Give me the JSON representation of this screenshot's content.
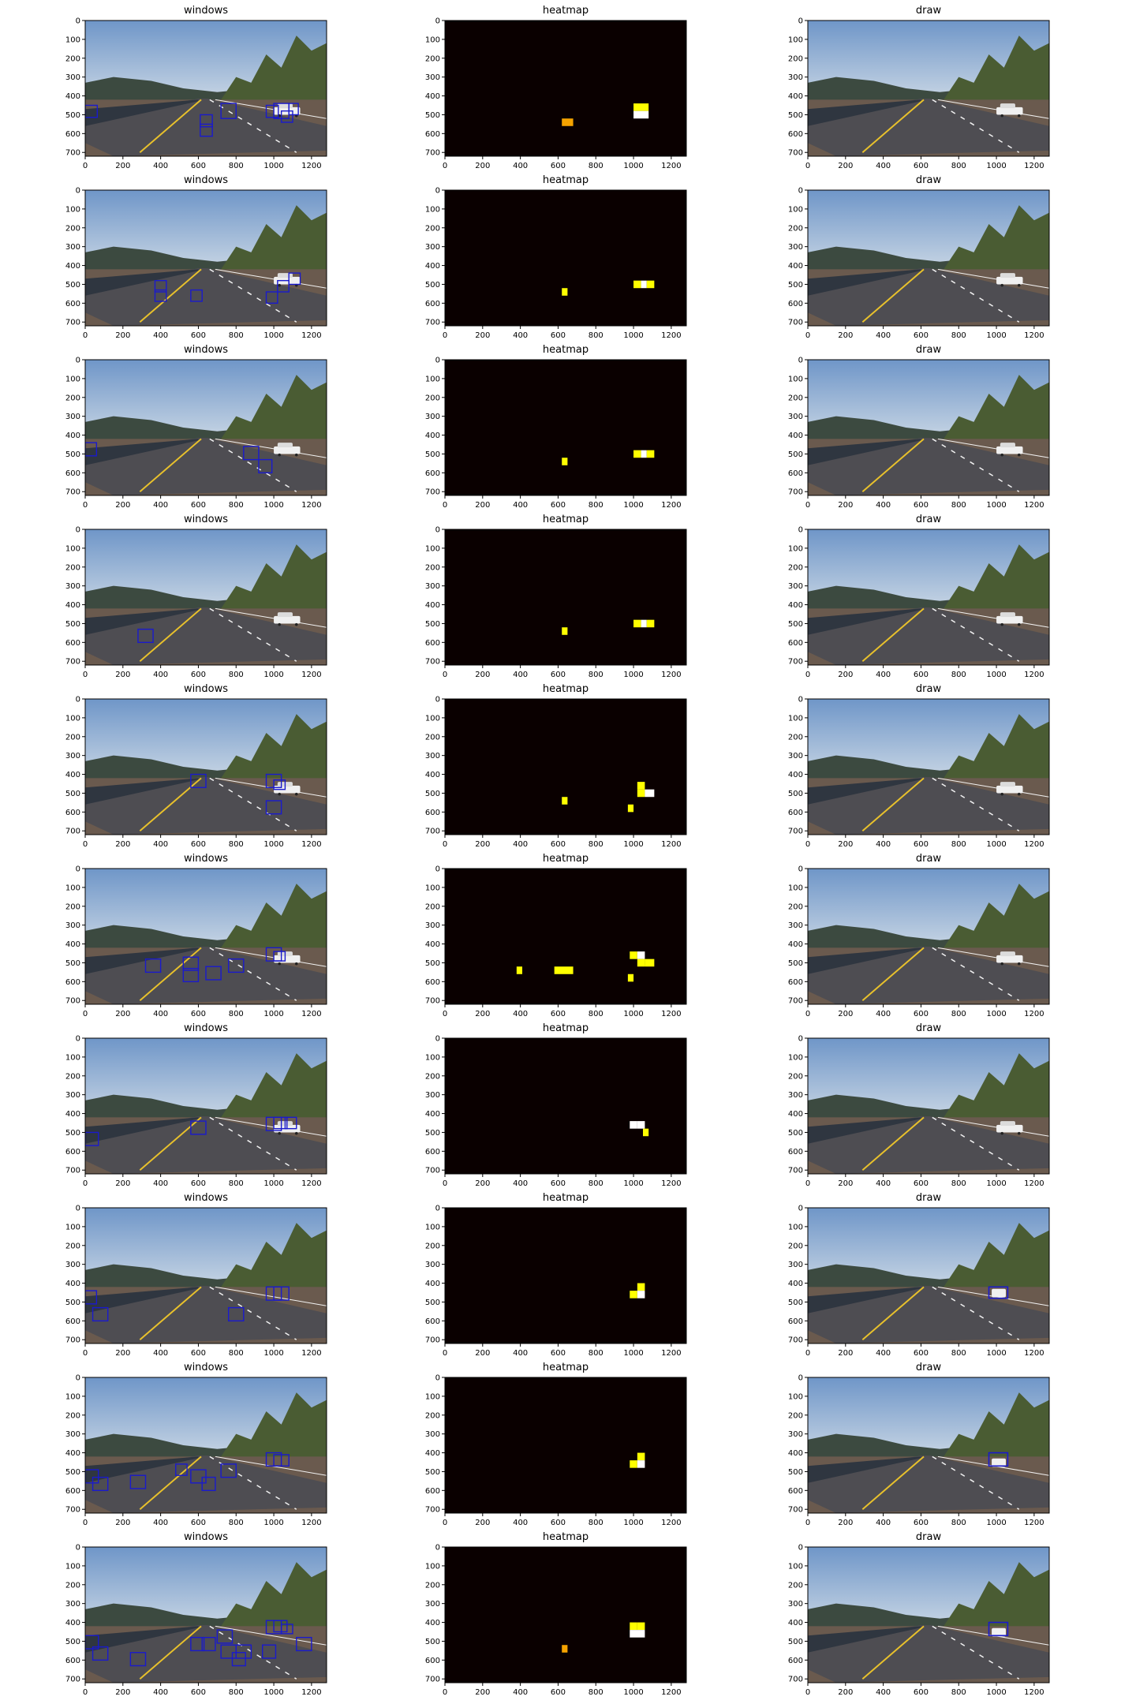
{
  "figure": {
    "column_titles": [
      "windows",
      "heatmap",
      "draw"
    ],
    "axes": {
      "x_ticks": [
        0,
        200,
        400,
        600,
        800,
        1000,
        1200
      ],
      "y_ticks": [
        0,
        100,
        200,
        300,
        400,
        500,
        600,
        700
      ],
      "x_range": [
        0,
        1280
      ],
      "y_range": [
        720,
        0
      ]
    }
  },
  "colors": {
    "window_box": "#1a1acc",
    "heat_bg": "#0a0000",
    "heat_low": "#f5a300",
    "heat_mid": "#ffff00",
    "heat_high": "#ffffff",
    "sky_top": "#6f96c8",
    "sky_horizon": "#c7d5e4",
    "road": "#4e4d52",
    "verge": "#6a5a4e",
    "hills": "#3c4a40",
    "trees": "#4a5c33",
    "lane_yellow": "#e8c12c",
    "lane_white": "#f2f2f2",
    "car": "#f0f0f0"
  },
  "chart_data": [
    {
      "row": 1,
      "type": "image-grid",
      "windows": [
        [
          0,
          450,
          64,
          514
        ],
        [
          610,
          500,
          674,
          564
        ],
        [
          610,
          550,
          674,
          614
        ],
        [
          720,
          440,
          800,
          520
        ],
        [
          960,
          450,
          1024,
          514
        ],
        [
          1000,
          440,
          1080,
          520
        ],
        [
          1080,
          440,
          1130,
          500
        ],
        [
          1040,
          480,
          1100,
          540
        ]
      ],
      "heatmap": [
        [
          620,
          520,
          680,
          560,
          "low"
        ],
        [
          1000,
          440,
          1080,
          480,
          "mid"
        ],
        [
          1000,
          480,
          1080,
          520,
          "high"
        ]
      ],
      "car_visible": true,
      "draw_boxes": []
    },
    {
      "row": 2,
      "type": "image-grid",
      "windows": [
        [
          370,
          480,
          430,
          540
        ],
        [
          370,
          530,
          430,
          590
        ],
        [
          560,
          530,
          620,
          590
        ],
        [
          960,
          540,
          1020,
          600
        ],
        [
          1020,
          480,
          1080,
          540
        ],
        [
          1080,
          440,
          1140,
          500
        ]
      ],
      "heatmap": [
        [
          620,
          520,
          650,
          560,
          "mid"
        ],
        [
          1000,
          480,
          1040,
          520,
          "mid"
        ],
        [
          1040,
          480,
          1070,
          520,
          "high"
        ],
        [
          1070,
          480,
          1110,
          520,
          "mid"
        ]
      ],
      "car_visible": true,
      "draw_boxes": []
    },
    {
      "row": 3,
      "type": "image-grid",
      "windows": [
        [
          0,
          440,
          60,
          510
        ],
        [
          840,
          460,
          920,
          530
        ],
        [
          920,
          530,
          990,
          600
        ]
      ],
      "heatmap": [
        [
          620,
          520,
          650,
          560,
          "mid"
        ],
        [
          1000,
          480,
          1040,
          520,
          "mid"
        ],
        [
          1040,
          480,
          1070,
          520,
          "high"
        ],
        [
          1070,
          480,
          1110,
          520,
          "mid"
        ]
      ],
      "car_visible": true,
      "draw_boxes": []
    },
    {
      "row": 4,
      "type": "image-grid",
      "windows": [
        [
          280,
          530,
          360,
          600
        ]
      ],
      "heatmap": [
        [
          620,
          520,
          650,
          560,
          "mid"
        ],
        [
          1000,
          480,
          1040,
          520,
          "mid"
        ],
        [
          1040,
          480,
          1070,
          520,
          "high"
        ],
        [
          1070,
          480,
          1110,
          520,
          "mid"
        ]
      ],
      "car_visible": true,
      "draw_boxes": []
    },
    {
      "row": 5,
      "type": "image-grid",
      "windows": [
        [
          560,
          400,
          640,
          470
        ],
        [
          960,
          400,
          1040,
          470
        ],
        [
          1000,
          430,
          1060,
          480
        ],
        [
          960,
          540,
          1040,
          610
        ]
      ],
      "heatmap": [
        [
          620,
          520,
          650,
          560,
          "mid"
        ],
        [
          1020,
          440,
          1060,
          480,
          "mid"
        ],
        [
          1020,
          480,
          1060,
          520,
          "mid"
        ],
        [
          1060,
          480,
          1110,
          520,
          "high"
        ],
        [
          970,
          560,
          1000,
          600,
          "mid"
        ]
      ],
      "car_visible": true,
      "draw_boxes": []
    },
    {
      "row": 6,
      "type": "image-grid",
      "windows": [
        [
          320,
          480,
          400,
          550
        ],
        [
          520,
          470,
          600,
          540
        ],
        [
          520,
          530,
          600,
          600
        ],
        [
          640,
          520,
          720,
          590
        ],
        [
          760,
          480,
          840,
          550
        ],
        [
          960,
          420,
          1040,
          490
        ],
        [
          1000,
          440,
          1060,
          490
        ]
      ],
      "heatmap": [
        [
          380,
          520,
          410,
          560,
          "mid"
        ],
        [
          580,
          520,
          680,
          560,
          "mid"
        ],
        [
          980,
          440,
          1020,
          480,
          "mid"
        ],
        [
          1020,
          440,
          1060,
          480,
          "high"
        ],
        [
          1020,
          480,
          1060,
          520,
          "mid"
        ],
        [
          1060,
          480,
          1110,
          520,
          "mid"
        ],
        [
          970,
          560,
          1000,
          600,
          "mid"
        ]
      ],
      "car_visible": true,
      "draw_boxes": []
    },
    {
      "row": 7,
      "type": "image-grid",
      "windows": [
        [
          0,
          500,
          70,
          570
        ],
        [
          560,
          440,
          640,
          510
        ],
        [
          960,
          420,
          1040,
          490
        ],
        [
          1000,
          420,
          1070,
          480
        ],
        [
          1060,
          420,
          1120,
          480
        ]
      ],
      "heatmap": [
        [
          980,
          440,
          1020,
          480,
          "high"
        ],
        [
          1020,
          440,
          1060,
          480,
          "high"
        ],
        [
          1050,
          480,
          1080,
          520,
          "mid"
        ]
      ],
      "car_visible": true,
      "draw_boxes": []
    },
    {
      "row": 8,
      "type": "image-grid",
      "windows": [
        [
          0,
          440,
          60,
          510
        ],
        [
          40,
          530,
          120,
          600
        ],
        [
          760,
          530,
          840,
          600
        ],
        [
          960,
          420,
          1040,
          490
        ],
        [
          1000,
          420,
          1080,
          490
        ]
      ],
      "heatmap": [
        [
          1020,
          400,
          1060,
          440,
          "mid"
        ],
        [
          980,
          440,
          1020,
          480,
          "mid"
        ],
        [
          1020,
          440,
          1060,
          480,
          "high"
        ]
      ],
      "car_visible": false,
      "draw_boxes": [
        [
          960,
          420,
          1060,
          480
        ]
      ]
    },
    {
      "row": 9,
      "type": "image-grid",
      "windows": [
        [
          0,
          490,
          70,
          560
        ],
        [
          40,
          530,
          120,
          600
        ],
        [
          240,
          520,
          320,
          590
        ],
        [
          480,
          460,
          540,
          520
        ],
        [
          560,
          490,
          640,
          560
        ],
        [
          620,
          530,
          690,
          600
        ],
        [
          720,
          460,
          800,
          530
        ],
        [
          960,
          400,
          1040,
          470
        ],
        [
          1000,
          410,
          1080,
          470
        ]
      ],
      "heatmap": [
        [
          1020,
          400,
          1060,
          440,
          "mid"
        ],
        [
          980,
          440,
          1020,
          480,
          "mid"
        ],
        [
          1020,
          440,
          1060,
          480,
          "high"
        ]
      ],
      "car_visible": false,
      "draw_boxes": [
        [
          960,
          400,
          1060,
          470
        ]
      ]
    },
    {
      "row": 10,
      "type": "image-grid",
      "windows": [
        [
          0,
          470,
          70,
          540
        ],
        [
          40,
          530,
          120,
          600
        ],
        [
          240,
          560,
          320,
          630
        ],
        [
          560,
          480,
          630,
          550
        ],
        [
          620,
          480,
          690,
          550
        ],
        [
          700,
          440,
          780,
          510
        ],
        [
          720,
          520,
          800,
          590
        ],
        [
          780,
          560,
          850,
          630
        ],
        [
          800,
          520,
          880,
          590
        ],
        [
          940,
          520,
          1010,
          590
        ],
        [
          960,
          390,
          1040,
          460
        ],
        [
          1000,
          390,
          1070,
          450
        ],
        [
          1040,
          410,
          1100,
          460
        ],
        [
          1120,
          480,
          1200,
          550
        ]
      ],
      "heatmap": [
        [
          980,
          400,
          1020,
          440,
          "mid"
        ],
        [
          1020,
          400,
          1060,
          440,
          "mid"
        ],
        [
          980,
          440,
          1060,
          480,
          "high"
        ],
        [
          620,
          520,
          650,
          560,
          "low"
        ]
      ],
      "car_visible": false,
      "draw_boxes": [
        [
          960,
          400,
          1060,
          470
        ]
      ]
    }
  ]
}
